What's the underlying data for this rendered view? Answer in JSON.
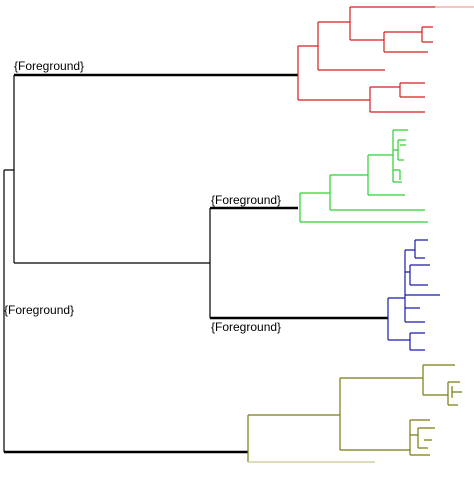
{
  "branch_labels": [
    "{Foreground}",
    "{Foreground}",
    "{Foreground}",
    "{Foreground}"
  ]
}
